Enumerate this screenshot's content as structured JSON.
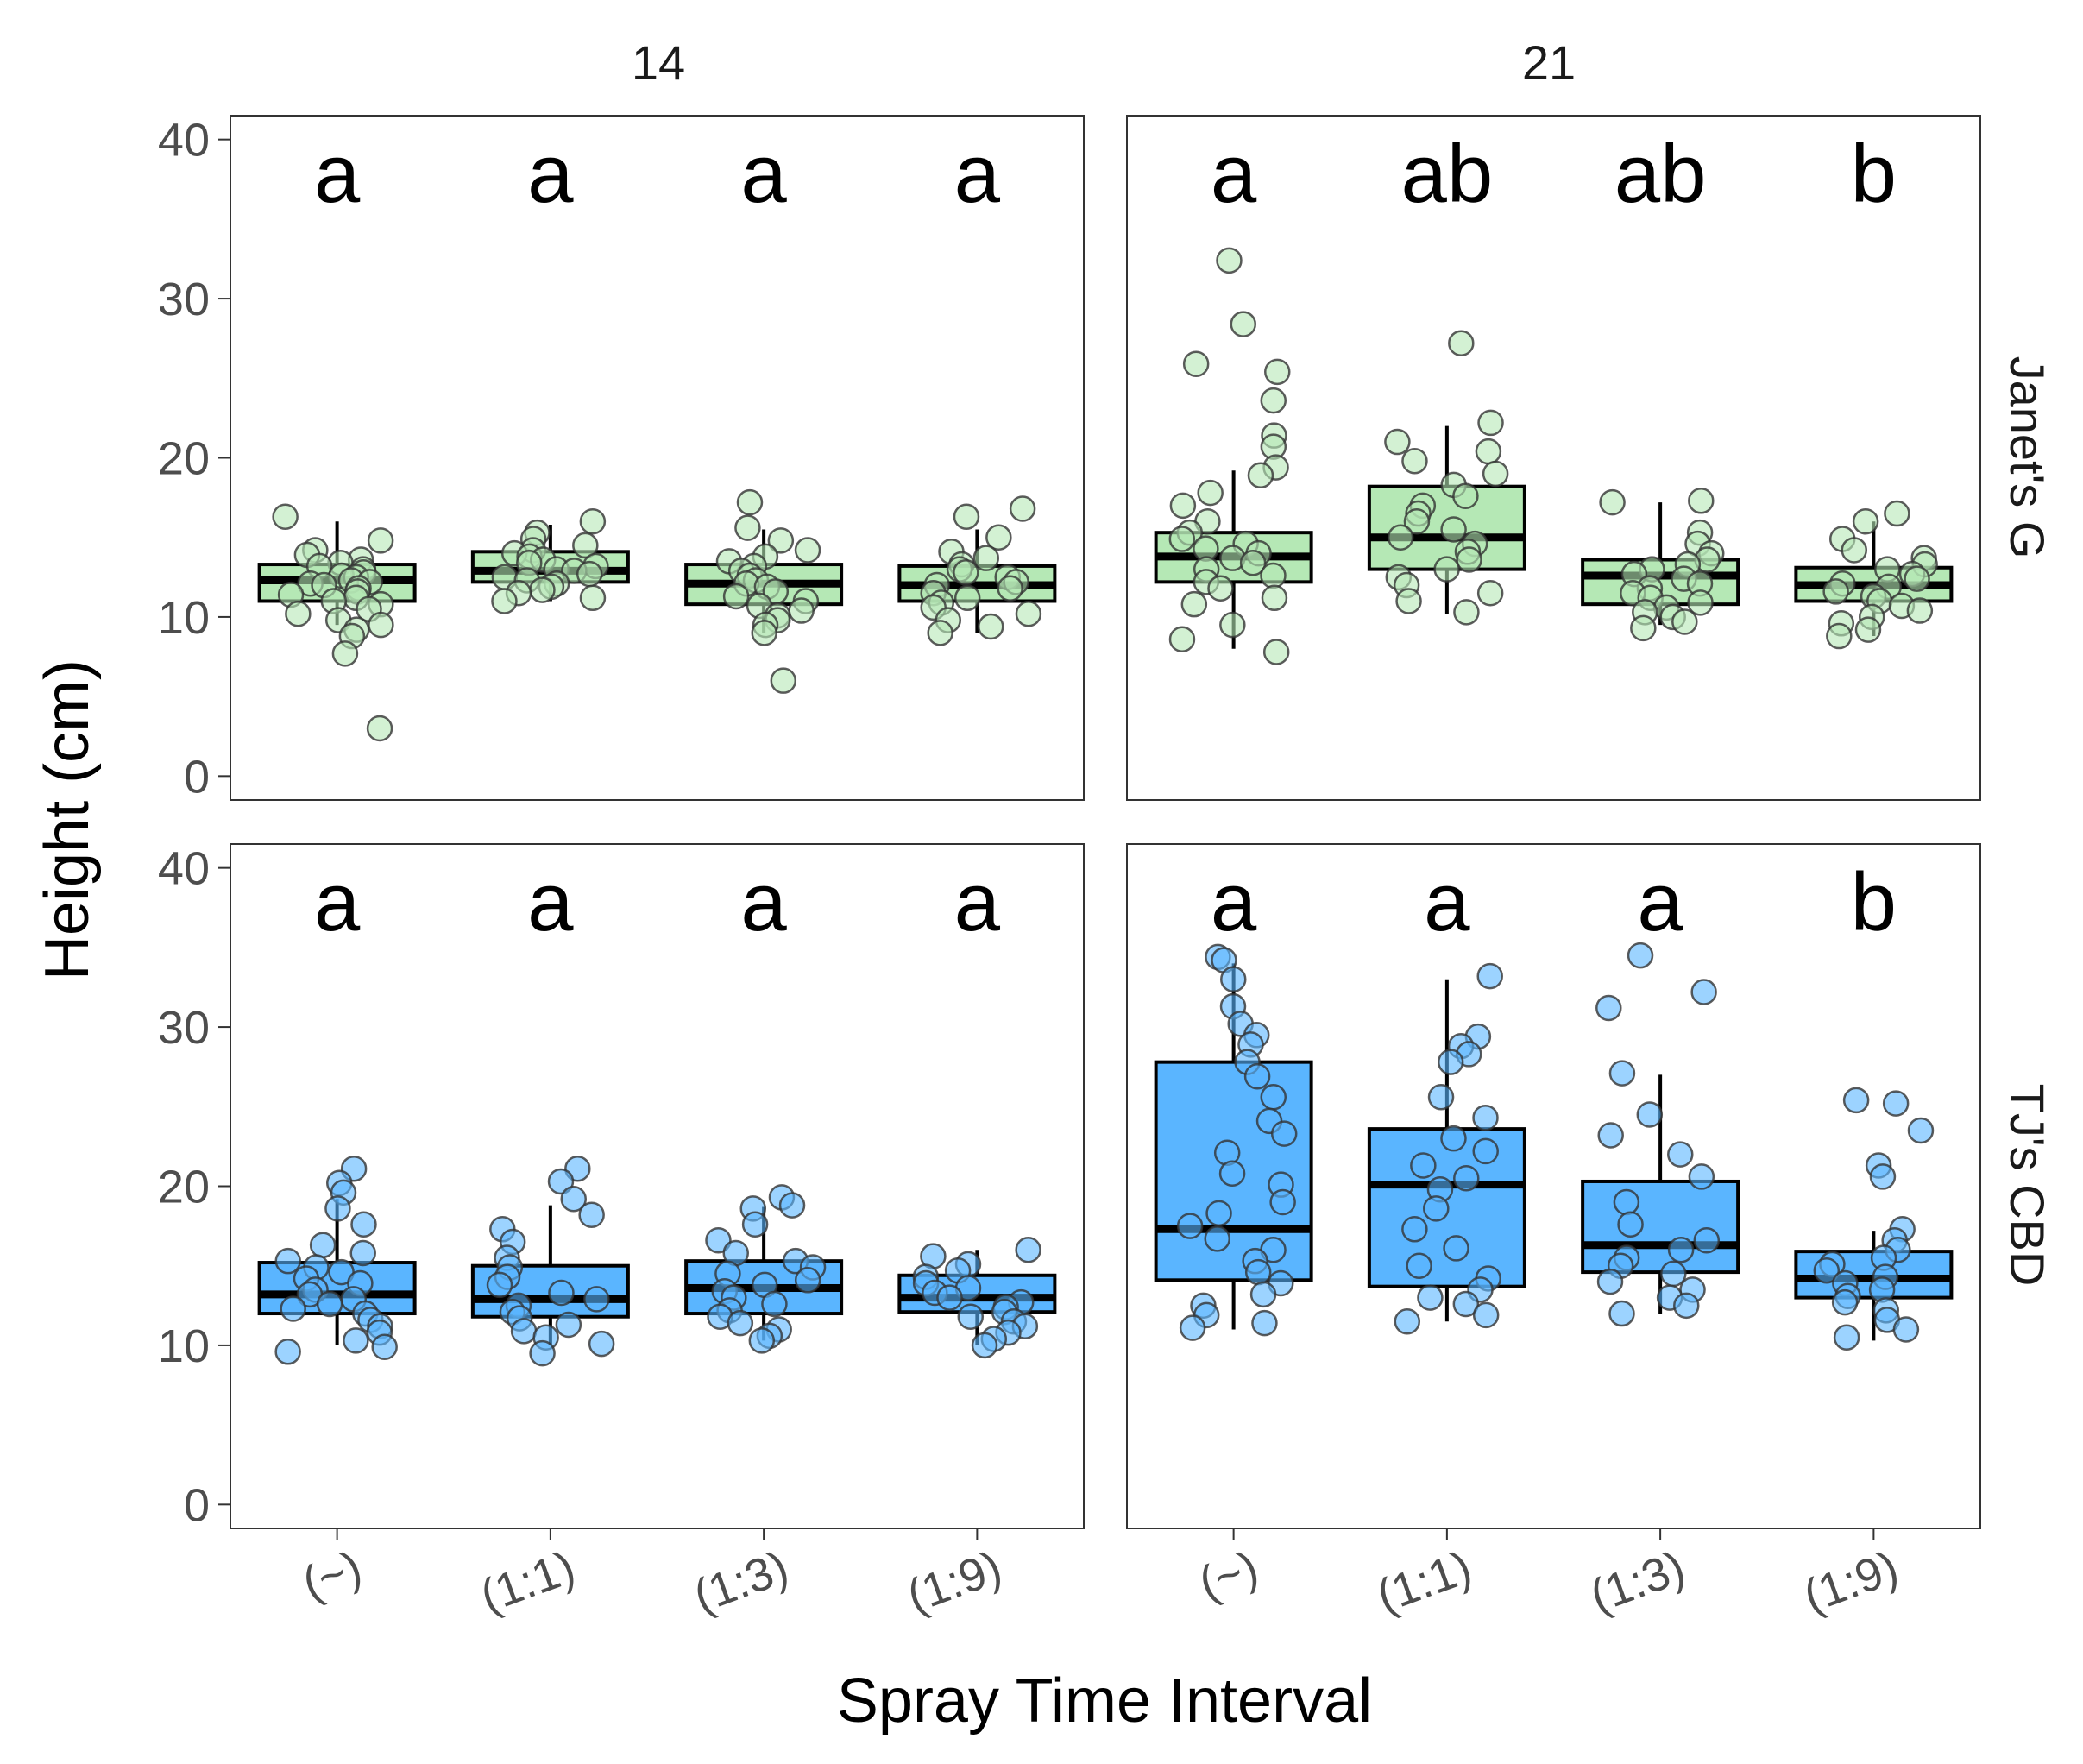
{
  "chart_data": {
    "type": "boxplot",
    "xlabel": "Spray Time Interval",
    "ylabel": "Height (cm)",
    "ylim": [
      -1.5,
      41.5
    ],
    "yticks": [
      0,
      10,
      20,
      30,
      40
    ],
    "categories": [
      "(~)",
      "(1:1)",
      "(1:3)",
      "(1:9)"
    ],
    "facet_columns": [
      "14",
      "21"
    ],
    "facet_rows": [
      "Janet's G",
      "TJ's CBD"
    ],
    "series_colors": {
      "Janet's G": "#b5e8b5",
      "TJ's CBD": "#5ab5ff"
    },
    "panels": [
      {
        "column": "14",
        "row": "Janet's G",
        "groups": [
          {
            "category": "(~)",
            "letter": "a",
            "min": 9.5,
            "q1": 11,
            "median": 12.3,
            "q3": 13.3,
            "max": 16,
            "points": [
              16.3,
              14.8,
              14.2,
              13.9,
              13.6,
              13.4,
              13.2,
              13.0,
              12.8,
              12.6,
              12.5,
              12.3,
              12.2,
              12.1,
              12.0,
              11.8,
              11.6,
              11.4,
              11.2,
              11.0,
              10.8,
              10.5,
              10.2,
              9.8,
              9.5,
              9.2,
              8.8,
              7.7,
              3.0
            ]
          },
          {
            "category": "(1:1)",
            "letter": "a",
            "min": 11,
            "q1": 12.2,
            "median": 12.9,
            "q3": 14.1,
            "max": 15.8,
            "points": [
              16.0,
              15.3,
              14.9,
              14.5,
              14.2,
              14.0,
              13.8,
              13.6,
              13.4,
              13.2,
              13.0,
              12.9,
              12.7,
              12.5,
              12.3,
              12.1,
              11.9,
              11.7,
              11.5,
              11.2,
              11.0
            ]
          },
          {
            "category": "(1:3)",
            "letter": "a",
            "min": 9,
            "q1": 10.8,
            "median": 12.1,
            "q3": 13.3,
            "max": 15.5,
            "points": [
              17.2,
              15.6,
              14.8,
              14.2,
              13.8,
              13.5,
              13.2,
              12.9,
              12.6,
              12.3,
              12.1,
              11.9,
              11.6,
              11.3,
              11.0,
              10.7,
              10.4,
              10.1,
              9.8,
              9.5,
              9.0,
              6.0
            ]
          },
          {
            "category": "(1:9)",
            "letter": "a",
            "min": 9,
            "q1": 11,
            "median": 12,
            "q3": 13.2,
            "max": 15.5,
            "points": [
              16.8,
              16.3,
              15.0,
              14.1,
              13.7,
              13.3,
              13.0,
              12.8,
              12.5,
              12.2,
              12.0,
              11.8,
              11.5,
              11.2,
              10.9,
              10.6,
              10.2,
              9.8,
              9.4,
              9.0
            ]
          }
        ]
      },
      {
        "column": "21",
        "row": "Janet's G",
        "groups": [
          {
            "category": "(~)",
            "letter": "a",
            "min": 8,
            "q1": 12.2,
            "median": 13.8,
            "q3": 15.3,
            "max": 19.2,
            "points": [
              32.4,
              28.4,
              25.9,
              25.4,
              23.6,
              21.4,
              20.7,
              19.4,
              18.9,
              17.8,
              17.0,
              16.0,
              15.3,
              14.9,
              14.6,
              14.3,
              14.0,
              13.7,
              13.4,
              13.0,
              12.6,
              12.2,
              11.8,
              11.2,
              10.8,
              9.5,
              8.6,
              7.8
            ]
          },
          {
            "category": "(1:1)",
            "letter": "ab",
            "min": 10.2,
            "q1": 13,
            "median": 15,
            "q3": 18.2,
            "max": 22,
            "points": [
              27.2,
              22.2,
              21.0,
              20.4,
              19.8,
              19.0,
              18.3,
              17.6,
              17.0,
              16.5,
              16.0,
              15.5,
              15.0,
              14.6,
              14.1,
              13.6,
              13.0,
              12.5,
              12.0,
              11.5,
              11.0,
              10.3
            ]
          },
          {
            "category": "(1:3)",
            "letter": "ab",
            "min": 9.5,
            "q1": 10.8,
            "median": 12.6,
            "q3": 13.6,
            "max": 17.2,
            "points": [
              17.3,
              17.2,
              15.3,
              14.6,
              14.0,
              13.6,
              13.3,
              13.0,
              12.7,
              12.4,
              12.1,
              11.8,
              11.5,
              11.2,
              10.9,
              10.6,
              10.3,
              10.0,
              9.7,
              9.3
            ]
          },
          {
            "category": "(1:9)",
            "letter": "b",
            "min": 8.8,
            "q1": 11,
            "median": 12,
            "q3": 13.1,
            "max": 16,
            "points": [
              16.5,
              16.0,
              14.9,
              14.2,
              13.7,
              13.3,
              13.0,
              12.7,
              12.4,
              12.1,
              11.9,
              11.6,
              11.3,
              11.0,
              10.7,
              10.4,
              10.0,
              9.6,
              9.2,
              8.8
            ]
          }
        ]
      },
      {
        "column": "14",
        "row": "TJ's CBD",
        "groups": [
          {
            "category": "(~)",
            "letter": "a",
            "min": 10,
            "q1": 12,
            "median": 13.2,
            "q3": 15.2,
            "max": 19.2,
            "points": [
              21.1,
              20.2,
              19.6,
              18.6,
              17.6,
              16.3,
              15.8,
              15.3,
              14.9,
              14.6,
              14.2,
              13.9,
              13.5,
              13.2,
              12.9,
              12.6,
              12.3,
              12.0,
              11.6,
              11.2,
              10.8,
              10.3,
              9.9,
              9.6
            ]
          },
          {
            "category": "(1:1)",
            "letter": "a",
            "min": 10,
            "q1": 11.8,
            "median": 12.9,
            "q3": 15,
            "max": 18.8,
            "points": [
              21.1,
              20.3,
              19.2,
              18.2,
              17.3,
              16.5,
              15.5,
              14.9,
              14.3,
              13.8,
              13.3,
              12.9,
              12.5,
              12.1,
              11.7,
              11.3,
              10.9,
              10.5,
              10.1,
              9.5
            ]
          },
          {
            "category": "(1:3)",
            "letter": "a",
            "min": 10.3,
            "q1": 12,
            "median": 13.6,
            "q3": 15.3,
            "max": 18.7,
            "points": [
              19.3,
              18.8,
              18.6,
              17.6,
              16.6,
              15.8,
              15.3,
              14.9,
              14.5,
              14.1,
              13.8,
              13.4,
              13.0,
              12.6,
              12.2,
              11.8,
              11.4,
              11.0,
              10.6,
              10.3
            ]
          },
          {
            "category": "(1:9)",
            "letter": "a",
            "min": 10,
            "q1": 12.1,
            "median": 13,
            "q3": 14.4,
            "max": 16,
            "points": [
              16.0,
              15.6,
              15.1,
              14.7,
              14.3,
              13.9,
              13.6,
              13.3,
              13.0,
              12.7,
              12.4,
              12.1,
              11.8,
              11.5,
              11.2,
              10.8,
              10.4,
              10.0
            ]
          }
        ]
      },
      {
        "column": "21",
        "row": "TJ's CBD",
        "groups": [
          {
            "category": "(~)",
            "letter": "a",
            "min": 11,
            "q1": 14.1,
            "median": 17.3,
            "q3": 27.8,
            "max": 34,
            "points": [
              34.4,
              34.2,
              33.0,
              31.3,
              30.2,
              29.5,
              28.9,
              27.8,
              26.9,
              25.6,
              24.1,
              23.3,
              22.1,
              20.8,
              20.1,
              19.0,
              18.3,
              17.5,
              16.7,
              16.0,
              15.3,
              14.6,
              13.9,
              13.2,
              12.5,
              11.9,
              11.4,
              11.1
            ]
          },
          {
            "category": "(1:1)",
            "letter": "a",
            "min": 11.5,
            "q1": 13.7,
            "median": 20.1,
            "q3": 23.6,
            "max": 33,
            "points": [
              33.2,
              29.4,
              28.8,
              28.3,
              27.8,
              25.6,
              24.3,
              23.0,
              22.2,
              21.3,
              20.5,
              19.8,
              18.6,
              17.3,
              16.1,
              15.0,
              14.2,
              13.5,
              13.0,
              12.6,
              11.9,
              11.5
            ]
          },
          {
            "category": "(1:3)",
            "letter": "a",
            "min": 12,
            "q1": 14.6,
            "median": 16.3,
            "q3": 20.3,
            "max": 27,
            "points": [
              34.5,
              32.2,
              31.2,
              27.1,
              24.5,
              23.2,
              22.0,
              20.6,
              19.0,
              17.6,
              16.6,
              16.0,
              15.5,
              15.0,
              14.5,
              14.0,
              13.5,
              13.0,
              12.5,
              12.0
            ]
          },
          {
            "category": "(1:9)",
            "letter": "b",
            "min": 10.3,
            "q1": 13,
            "median": 14.2,
            "q3": 15.9,
            "max": 17.2,
            "points": [
              25.4,
              25.2,
              23.5,
              21.3,
              20.6,
              17.3,
              16.6,
              16.0,
              15.5,
              15.1,
              14.7,
              14.3,
              13.9,
              13.5,
              13.1,
              12.7,
              12.2,
              11.6,
              11.0,
              10.5
            ]
          }
        ]
      }
    ]
  }
}
